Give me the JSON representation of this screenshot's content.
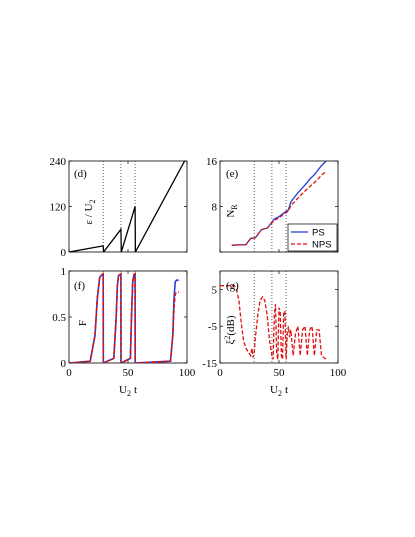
{
  "chart_data": [
    {
      "panel": "d",
      "type": "line",
      "panel_label": "(d)",
      "ylabel": "ε / U",
      "ylabel_sub": "2",
      "xlim": [
        0,
        100
      ],
      "ylim": [
        0,
        240
      ],
      "xticks": [
        0,
        50,
        100
      ],
      "xtick_labels": [
        "",
        "",
        ""
      ],
      "yticks": [
        0,
        120,
        240
      ],
      "ytick_labels": [
        "0",
        "120",
        "240"
      ],
      "vlines": [
        29,
        44,
        56
      ],
      "series": [
        {
          "color": "#000000",
          "dash": "solid",
          "x": [
            0,
            29,
            29.3,
            44,
            44.3,
            56,
            56.3,
            98
          ],
          "y": [
            0,
            16,
            0,
            60,
            0,
            120,
            0,
            240
          ]
        }
      ]
    },
    {
      "panel": "e",
      "type": "line",
      "panel_label": "(e)",
      "ylabel": "N",
      "ylabel_sub": "R",
      "xlim": [
        0,
        100
      ],
      "ylim": [
        0,
        16
      ],
      "xticks": [
        0,
        50,
        100
      ],
      "xtick_labels": [
        "",
        "",
        ""
      ],
      "yticks": [
        0,
        8,
        16
      ],
      "ytick_labels": [
        "",
        "8",
        "16"
      ],
      "vlines": [
        29,
        44,
        56
      ],
      "legend": {
        "position": "bottom-right",
        "entries": [
          "PS",
          "NPS"
        ]
      },
      "series": [
        {
          "name": "PS",
          "color": "#1f3fd6",
          "dash": "solid",
          "x": [
            10,
            22,
            26,
            30,
            35,
            40,
            46,
            50,
            55,
            58,
            60,
            63,
            66,
            70,
            73,
            76,
            80,
            83,
            86,
            90
          ],
          "y": [
            1.2,
            1.3,
            2.4,
            2.5,
            3.9,
            4.2,
            5.8,
            6.2,
            7.0,
            7.4,
            8.8,
            9.6,
            10.4,
            11.3,
            12.0,
            12.8,
            13.6,
            14.4,
            15.2,
            16.0
          ]
        },
        {
          "name": "NPS",
          "color": "#e01010",
          "dash": "dashed",
          "x": [
            10,
            22,
            26,
            30,
            35,
            40,
            46,
            50,
            55,
            58,
            60,
            63,
            66,
            70,
            73,
            76,
            80,
            83,
            86,
            90
          ],
          "y": [
            1.2,
            1.3,
            2.4,
            2.5,
            3.9,
            4.2,
            5.6,
            6.0,
            6.8,
            7.2,
            8.2,
            8.8,
            9.5,
            10.3,
            10.9,
            11.5,
            12.2,
            12.8,
            13.5,
            14.2
          ]
        }
      ]
    },
    {
      "panel": "f",
      "type": "line",
      "panel_label": "(f)",
      "ylabel": "F",
      "xlabel": "U",
      "xlabel_sub": "2",
      "xlabel_tail": "t",
      "xlim": [
        0,
        100
      ],
      "ylim": [
        0,
        1
      ],
      "xticks": [
        0,
        50,
        100
      ],
      "xtick_labels": [
        "0",
        "50",
        "100"
      ],
      "yticks": [
        0,
        0.5,
        1
      ],
      "ytick_labels": [
        "0",
        "0.5",
        "1"
      ],
      "vlines": [
        29,
        44,
        56
      ],
      "series": [
        {
          "name": "PS",
          "color": "#1f3fd6",
          "dash": "solid",
          "x": [
            0,
            18,
            22,
            24,
            26,
            28,
            29,
            29.1,
            38,
            40,
            41,
            42,
            43,
            44,
            44.1,
            52,
            53,
            54,
            55,
            56,
            56.1,
            86,
            88,
            89,
            90,
            91,
            93
          ],
          "y": [
            0,
            0.02,
            0.3,
            0.7,
            0.93,
            0.96,
            0.97,
            0,
            0.05,
            0.5,
            0.85,
            0.95,
            0.96,
            0.97,
            0,
            0.05,
            0.5,
            0.88,
            0.96,
            0.97,
            0,
            0.02,
            0.3,
            0.7,
            0.88,
            0.9,
            0.9
          ]
        },
        {
          "name": "NPS",
          "color": "#e01010",
          "dash": "dashed",
          "x": [
            0,
            18,
            22,
            24,
            26,
            28,
            29,
            29.1,
            38,
            40,
            41,
            42,
            43,
            44,
            44.1,
            52,
            53,
            54,
            55,
            56,
            56.1,
            86,
            88,
            89,
            90,
            91,
            93
          ],
          "y": [
            0,
            0.02,
            0.3,
            0.7,
            0.93,
            0.96,
            0.97,
            0,
            0.05,
            0.5,
            0.85,
            0.95,
            0.96,
            0.97,
            0,
            0.05,
            0.5,
            0.88,
            0.96,
            0.97,
            0,
            0.02,
            0.3,
            0.6,
            0.75,
            0.77,
            0.77
          ]
        }
      ]
    },
    {
      "panel": "g",
      "type": "line",
      "panel_label": "(g)",
      "ylabel": "ξ",
      "ylabel_sup": "2",
      "ylabel_tail": "(dB)",
      "xlabel": "U",
      "xlabel_sub": "2",
      "xlabel_tail": "t",
      "xlim": [
        0,
        100
      ],
      "ylim": [
        -15,
        10
      ],
      "xticks": [
        0,
        50,
        100
      ],
      "xtick_labels": [
        "0",
        "50",
        "100"
      ],
      "yticks": [
        -15,
        -5,
        5
      ],
      "ytick_labels": [
        "-15",
        "-5",
        "5"
      ],
      "vlines": [
        29,
        44,
        56
      ],
      "series": [
        {
          "name": "NPS",
          "color": "#e01010",
          "dash": "dashed",
          "x": [
            0,
            12,
            14,
            16,
            18,
            20,
            22,
            24,
            26,
            27,
            28,
            29,
            30,
            32,
            34,
            36,
            38,
            40,
            42,
            44,
            45,
            46,
            47,
            48,
            49,
            50,
            51,
            52,
            53,
            54,
            55,
            56,
            57,
            58,
            59,
            60,
            62,
            64,
            66,
            68,
            70,
            72,
            74,
            76,
            78,
            80,
            82,
            84,
            86,
            88,
            90
          ],
          "y": [
            6,
            6,
            5,
            2,
            -4,
            -9,
            -11,
            -12,
            -13,
            -11,
            -13.5,
            -12,
            -8,
            -2,
            2,
            3,
            2,
            -2,
            -9,
            -13,
            -14,
            -2,
            1,
            -12,
            -14,
            0,
            -1,
            -13,
            -14,
            -1,
            -1,
            -14,
            -7,
            -5,
            -8,
            -6,
            -13,
            -7,
            -5,
            -13,
            -6,
            -5,
            -13,
            -6,
            -5,
            -13,
            -6,
            -6,
            -13,
            -13.5,
            -14
          ]
        }
      ]
    }
  ]
}
